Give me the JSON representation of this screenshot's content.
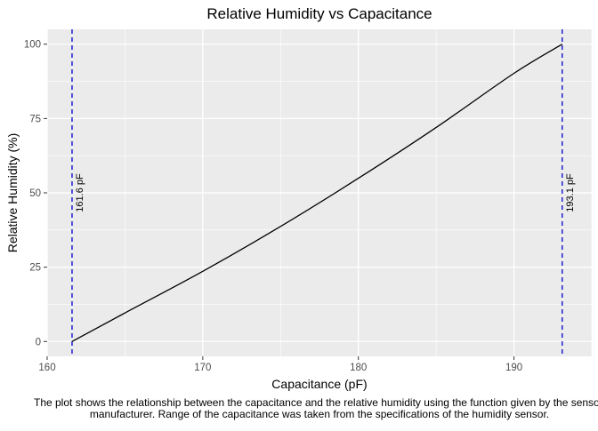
{
  "chart_data": {
    "type": "line",
    "title": "Relative Humidity vs Capacitance",
    "xlabel": "Capacitance (pF)",
    "ylabel": "Relative Humidity (%)",
    "xlim": [
      160,
      195
    ],
    "ylim": [
      -5,
      105
    ],
    "x_ticks": [
      160,
      170,
      180,
      190
    ],
    "y_ticks": [
      0,
      25,
      50,
      75,
      100
    ],
    "grid": true,
    "series": [
      {
        "color": "#000000",
        "x": [
          161.6,
          165,
          170,
          175,
          180,
          185,
          190,
          193.1
        ],
        "y": [
          0,
          9.6,
          23.6,
          38.7,
          54.9,
          72.0,
          90.2,
          100
        ]
      }
    ],
    "reference_lines": [
      {
        "axis": "x",
        "value": 161.6,
        "label": "161.6 pF",
        "color": "#0000cc",
        "style": "dashed"
      },
      {
        "axis": "x",
        "value": 193.1,
        "label": "193.1 pF",
        "color": "#0000cc",
        "style": "dashed"
      }
    ],
    "caption": [
      "The plot shows the relationship between the capacitance and the relative humidity using the function given by the sensor",
      "manufacturer. Range of the capacitance was taken from the specifications of the humidity sensor."
    ],
    "colors": {
      "panel_background": "#ebebeb",
      "gridline": "#ffffff",
      "line": "#000000",
      "reference_line": "#0000cc"
    }
  }
}
